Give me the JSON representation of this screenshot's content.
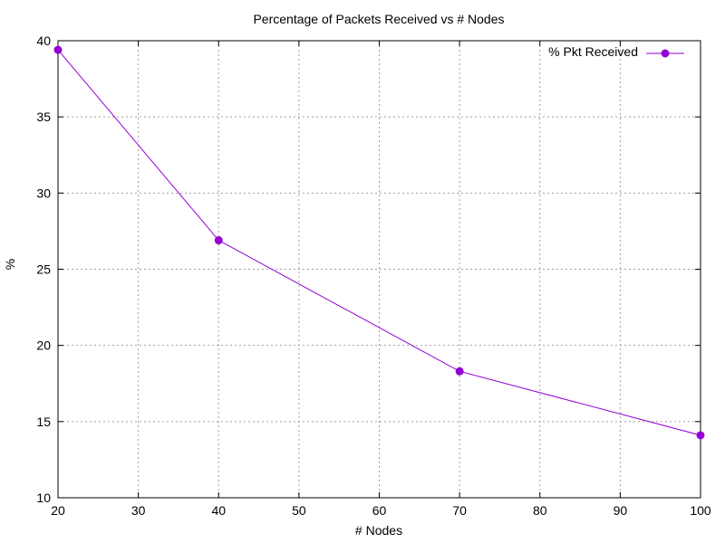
{
  "chart_data": {
    "type": "line",
    "title": "Percentage of Packets Received vs # Nodes",
    "xlabel": "# Nodes",
    "ylabel": "%",
    "xlim": [
      20,
      100
    ],
    "ylim": [
      10,
      40
    ],
    "xticks": [
      20,
      30,
      40,
      50,
      60,
      70,
      80,
      90,
      100
    ],
    "yticks": [
      10,
      15,
      20,
      25,
      30,
      35,
      40
    ],
    "grid": true,
    "legend_position": "top-right",
    "series": [
      {
        "name": "% Pkt Received",
        "color": "#9400d3",
        "x": [
          20,
          40,
          70,
          100
        ],
        "y": [
          39.4,
          26.9,
          18.3,
          14.1
        ]
      }
    ]
  }
}
